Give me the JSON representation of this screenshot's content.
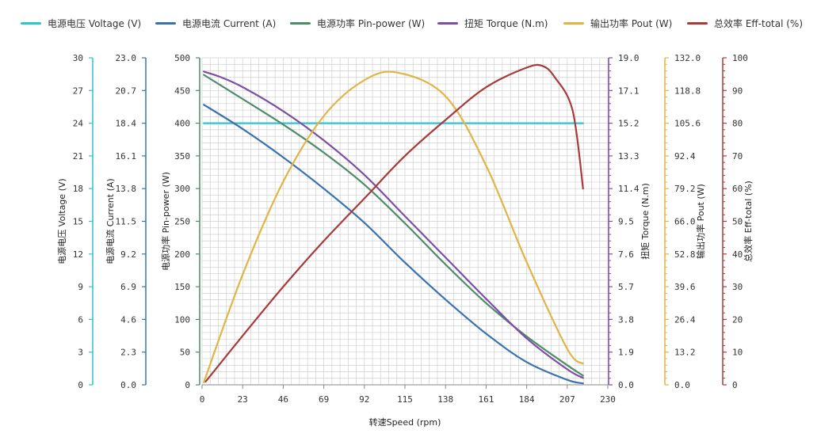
{
  "chart_data": {
    "type": "line",
    "xlabel": "转速Speed (rpm)",
    "xlim": [
      0,
      230
    ],
    "xticks": [
      "0",
      "23",
      "46",
      "69",
      "92",
      "115",
      "138",
      "161",
      "184",
      "207",
      "230"
    ],
    "grid": true,
    "legend_position": "top",
    "axes": [
      {
        "id": "voltage",
        "label": "电源电压 Voltage (V)",
        "side": "left",
        "color": "#2ec4c9",
        "ticks": [
          "0",
          "3",
          "6",
          "9",
          "12",
          "15",
          "18",
          "21",
          "24",
          "27",
          "30"
        ],
        "ylim": [
          0,
          30
        ]
      },
      {
        "id": "current",
        "label": "电源电流 Current (A)",
        "side": "left",
        "color": "#3a72b0",
        "ticks": [
          "0.0",
          "2.3",
          "4.6",
          "6.9",
          "9.2",
          "11.5",
          "13.8",
          "16.1",
          "18.4",
          "20.7",
          "23.0"
        ],
        "ylim": [
          0,
          23
        ]
      },
      {
        "id": "pin",
        "label": "电源功率 Pin-power (W)",
        "side": "left",
        "color": "#4d8b6b",
        "ticks": [
          "0",
          "50",
          "100",
          "150",
          "200",
          "250",
          "300",
          "350",
          "400",
          "450",
          "500"
        ],
        "ylim": [
          0,
          500
        ]
      },
      {
        "id": "torque",
        "label": "扭矩 Torque (N.m)",
        "side": "right",
        "color": "#7d4fa3",
        "ticks": [
          "0.0",
          "1.9",
          "3.8",
          "5.7",
          "7.6",
          "9.5",
          "11.4",
          "13.3",
          "15.2",
          "17.1",
          "19.0"
        ],
        "ylim": [
          0,
          19
        ]
      },
      {
        "id": "pout",
        "label": "输出功率 Pout (W)",
        "side": "right",
        "color": "#e2b443",
        "ticks": [
          "0.0",
          "13.2",
          "26.4",
          "39.6",
          "52.8",
          "66.0",
          "79.2",
          "92.4",
          "105.6",
          "118.8",
          "132.0"
        ],
        "ylim": [
          0,
          132
        ]
      },
      {
        "id": "eff",
        "label": "总效率 Eff-total (%)",
        "side": "right",
        "color": "#a83a3a",
        "ticks": [
          "0",
          "10",
          "20",
          "30",
          "40",
          "50",
          "60",
          "70",
          "80",
          "90",
          "100"
        ],
        "ylim": [
          0,
          100
        ]
      }
    ],
    "series": [
      {
        "name": "电源电压 Voltage (V)",
        "axis": "voltage",
        "color": "#2ec4c9",
        "x": [
          1,
          216
        ],
        "y": [
          24,
          24
        ]
      },
      {
        "name": "电源电流 Current (A)",
        "axis": "current",
        "color": "#3a72b0",
        "x": [
          1,
          23,
          46,
          69,
          92,
          115,
          138,
          161,
          184,
          207,
          216
        ],
        "y": [
          19.7,
          18.0,
          16.0,
          13.8,
          11.4,
          8.6,
          6.0,
          3.6,
          1.6,
          0.35,
          0.1
        ]
      },
      {
        "name": "电源功率 Pin-power (W)",
        "axis": "pin",
        "color": "#4d8b6b",
        "x": [
          1,
          23,
          46,
          69,
          92,
          115,
          138,
          161,
          184,
          207,
          216
        ],
        "y": [
          474,
          437,
          398,
          355,
          306,
          247,
          184,
          125,
          74,
          30,
          14
        ]
      },
      {
        "name": "扭矩 Torque (N.m)",
        "axis": "torque",
        "color": "#7d4fa3",
        "x": [
          1,
          10,
          23,
          46,
          69,
          92,
          115,
          138,
          161,
          184,
          207,
          216
        ],
        "y": [
          18.2,
          17.9,
          17.3,
          15.9,
          14.2,
          12.2,
          9.8,
          7.4,
          5.0,
          2.7,
          0.9,
          0.4
        ]
      },
      {
        "name": "输出功率 Pout (W)",
        "axis": "pout",
        "color": "#e2b443",
        "x": [
          1,
          23,
          46,
          69,
          92,
          111,
          138,
          161,
          184,
          207,
          216
        ],
        "y": [
          1,
          44.5,
          82,
          108.5,
          123,
          126,
          116.5,
          88.5,
          49.5,
          14.5,
          8.5
        ]
      },
      {
        "name": "总效率 Eff-total (%)",
        "axis": "eff",
        "color": "#a83a3a",
        "x": [
          2,
          23,
          46,
          69,
          92,
          115,
          138,
          161,
          184,
          193,
          200,
          210,
          216
        ],
        "y": [
          1,
          15,
          30,
          44,
          57,
          70,
          81,
          91,
          97,
          97.5,
          94,
          84,
          60
        ]
      }
    ]
  }
}
